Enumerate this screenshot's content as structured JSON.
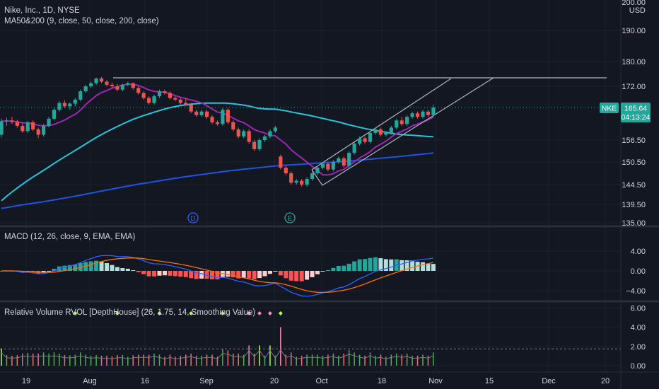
{
  "header": {
    "symbol_line": "Nike, Inc., 1D, NYSE",
    "indicator_line": "MA50&200 (9, close, 50, close, 200, close)"
  },
  "price_panel": {
    "currency_top": "200.00",
    "currency": "USD",
    "axis_ticks": [
      {
        "label": "190.00",
        "value": 190.0
      },
      {
        "label": "180.00",
        "value": 180.0
      },
      {
        "label": "172.00",
        "value": 172.0
      },
      {
        "label": "156.50",
        "value": 156.5
      },
      {
        "label": "150.50",
        "value": 150.5
      },
      {
        "label": "144.50",
        "value": 144.5
      },
      {
        "label": "139.50",
        "value": 139.5
      },
      {
        "label": "135.00",
        "value": 135.0
      }
    ],
    "ticker_badge": "NKE",
    "last_price": "165.64",
    "countdown": "04:13:24",
    "marker_d": "D",
    "marker_e": "E",
    "colors": {
      "up": "#26a69a",
      "down": "#ef5350",
      "ma9": "#9c27b0",
      "ma50": "#26c6da",
      "ma200": "#1e53e5",
      "trend": "#b2b5be"
    }
  },
  "macd_panel": {
    "title": "MACD (12, 26, close, 9, EMA, EMA)",
    "axis_ticks": [
      {
        "label": "4.00",
        "value": 4
      },
      {
        "label": "0.00",
        "value": 0
      },
      {
        "label": "−4.00",
        "value": -4
      }
    ]
  },
  "rvol_panel": {
    "title": "Relative Volume RVOL [DepthHouse] (26, 1.75, 14, Smoothing Value)",
    "axis_ticks": [
      {
        "label": "6.00",
        "value": 6
      },
      {
        "label": "4.00",
        "value": 4
      },
      {
        "label": "2.00",
        "value": 2
      },
      {
        "label": "0.00",
        "value": 0
      }
    ]
  },
  "time_axis": [
    "19",
    "Aug",
    "16",
    "Sep",
    "20",
    "Oct",
    "18",
    "Nov",
    "15",
    "Dec",
    "20"
  ],
  "chart_data": {
    "type": "candlestick",
    "symbol": "NKE",
    "last_price": 165.64,
    "x_axis_labels": [
      "19",
      "Aug",
      "16",
      "Sep",
      "20",
      "Oct",
      "18",
      "Nov",
      "15",
      "Dec",
      "20"
    ],
    "y_axis_ticks": [
      190.0,
      180.0,
      172.0,
      156.5,
      150.5,
      144.5,
      139.5,
      135.0
    ],
    "y_range": [
      135.0,
      200.0
    ],
    "candles": [
      [
        158.0,
        162.5,
        157.2,
        161.8
      ],
      [
        161.8,
        162.8,
        160.5,
        162.0
      ],
      [
        162.0,
        163.0,
        161.0,
        161.6
      ],
      [
        161.6,
        162.2,
        160.0,
        160.5
      ],
      [
        160.5,
        161.5,
        158.5,
        159.0
      ],
      [
        159.0,
        161.8,
        158.5,
        161.5
      ],
      [
        161.5,
        162.0,
        159.0,
        159.5
      ],
      [
        159.5,
        160.0,
        157.0,
        158.0
      ],
      [
        158.0,
        161.0,
        157.5,
        160.5
      ],
      [
        160.5,
        163.0,
        160.0,
        162.5
      ],
      [
        162.5,
        165.5,
        162.0,
        165.0
      ],
      [
        165.0,
        167.5,
        164.5,
        167.0
      ],
      [
        167.0,
        167.8,
        165.5,
        166.0
      ],
      [
        166.0,
        167.2,
        165.0,
        166.8
      ],
      [
        166.8,
        168.5,
        166.0,
        168.0
      ],
      [
        168.0,
        171.0,
        167.5,
        170.5
      ],
      [
        170.5,
        172.5,
        170.0,
        172.0
      ],
      [
        172.0,
        173.5,
        171.5,
        173.0
      ],
      [
        173.0,
        174.8,
        172.5,
        174.5
      ],
      [
        174.5,
        175.0,
        173.0,
        173.5
      ],
      [
        173.5,
        174.0,
        172.0,
        172.5
      ],
      [
        172.5,
        173.2,
        171.5,
        172.0
      ],
      [
        172.0,
        172.8,
        170.5,
        171.0
      ],
      [
        171.0,
        172.8,
        170.5,
        172.5
      ],
      [
        172.5,
        173.5,
        172.0,
        173.0
      ],
      [
        173.0,
        173.2,
        171.0,
        171.5
      ],
      [
        171.5,
        172.0,
        169.5,
        170.0
      ],
      [
        170.0,
        170.5,
        168.0,
        168.5
      ],
      [
        168.5,
        169.0,
        166.5,
        167.0
      ],
      [
        167.0,
        169.5,
        166.5,
        169.0
      ],
      [
        169.0,
        171.0,
        168.5,
        170.5
      ],
      [
        170.5,
        171.0,
        169.5,
        170.0
      ],
      [
        170.0,
        170.5,
        168.0,
        168.5
      ],
      [
        168.5,
        169.0,
        167.5,
        168.0
      ],
      [
        168.0,
        168.5,
        166.5,
        167.0
      ],
      [
        167.0,
        168.5,
        166.0,
        166.5
      ],
      [
        166.5,
        167.0,
        164.0,
        164.5
      ],
      [
        164.5,
        165.0,
        163.0,
        163.5
      ],
      [
        163.5,
        165.0,
        163.0,
        164.5
      ],
      [
        164.5,
        165.0,
        162.5,
        163.0
      ],
      [
        163.0,
        163.5,
        161.0,
        161.5
      ],
      [
        161.5,
        162.0,
        160.5,
        161.0
      ],
      [
        161.0,
        165.5,
        160.5,
        165.0
      ],
      [
        165.0,
        165.5,
        161.0,
        161.5
      ],
      [
        161.5,
        162.0,
        159.0,
        159.5
      ],
      [
        159.5,
        160.0,
        157.0,
        157.5
      ],
      [
        157.5,
        159.5,
        157.0,
        159.0
      ],
      [
        159.0,
        159.5,
        155.5,
        156.0
      ],
      [
        156.0,
        156.5,
        153.5,
        154.0
      ],
      [
        154.0,
        157.0,
        153.5,
        156.5
      ],
      [
        156.5,
        158.0,
        156.0,
        157.5
      ],
      [
        157.5,
        159.5,
        157.0,
        159.0
      ],
      [
        159.0,
        160.5,
        158.5,
        160.0
      ],
      [
        152.0,
        152.5,
        148.5,
        149.0
      ],
      [
        149.0,
        149.5,
        147.0,
        147.5
      ],
      [
        147.5,
        148.0,
        144.5,
        145.0
      ],
      [
        145.0,
        146.0,
        144.5,
        145.5
      ],
      [
        145.5,
        146.0,
        144.0,
        144.5
      ],
      [
        144.5,
        146.5,
        144.0,
        146.0
      ],
      [
        146.0,
        148.0,
        145.5,
        147.5
      ],
      [
        147.5,
        149.5,
        147.0,
        149.0
      ],
      [
        149.0,
        150.5,
        148.5,
        150.0
      ],
      [
        150.0,
        150.5,
        148.0,
        148.5
      ],
      [
        148.5,
        151.0,
        148.0,
        150.5
      ],
      [
        150.5,
        152.0,
        150.0,
        151.5
      ],
      [
        151.5,
        152.0,
        149.0,
        149.5
      ],
      [
        149.5,
        153.5,
        149.0,
        153.0
      ],
      [
        153.0,
        156.0,
        152.5,
        155.5
      ],
      [
        155.5,
        157.5,
        155.0,
        157.0
      ],
      [
        157.0,
        157.5,
        155.5,
        156.0
      ],
      [
        156.0,
        159.0,
        155.5,
        158.5
      ],
      [
        158.5,
        160.0,
        158.0,
        159.5
      ],
      [
        159.5,
        160.0,
        157.5,
        158.0
      ],
      [
        158.0,
        159.0,
        157.5,
        158.5
      ],
      [
        158.5,
        160.5,
        158.0,
        160.0
      ],
      [
        160.0,
        162.5,
        159.5,
        162.0
      ],
      [
        162.0,
        163.0,
        160.5,
        161.0
      ],
      [
        161.0,
        163.5,
        160.5,
        163.0
      ],
      [
        163.0,
        164.5,
        162.5,
        164.0
      ],
      [
        164.0,
        164.5,
        162.5,
        163.0
      ],
      [
        163.0,
        165.0,
        162.5,
        164.5
      ],
      [
        164.5,
        165.0,
        163.0,
        163.5
      ],
      [
        163.5,
        166.5,
        163.0,
        165.64
      ]
    ],
    "rvol_markers": [
      {
        "index": 14,
        "color": "#b2ff59"
      },
      {
        "index": 22,
        "color": "#b2ff59"
      },
      {
        "index": 30,
        "color": "#b2ff59"
      },
      {
        "index": 36,
        "color": "#b2ff59"
      },
      {
        "index": 42,
        "color": "#b2ff59"
      },
      {
        "index": 47,
        "color": "#f48fb1"
      },
      {
        "index": 49,
        "color": "#f48fb1"
      },
      {
        "index": 51,
        "color": "#f48fb1"
      },
      {
        "index": 53,
        "color": "#b2ff59"
      }
    ]
  }
}
